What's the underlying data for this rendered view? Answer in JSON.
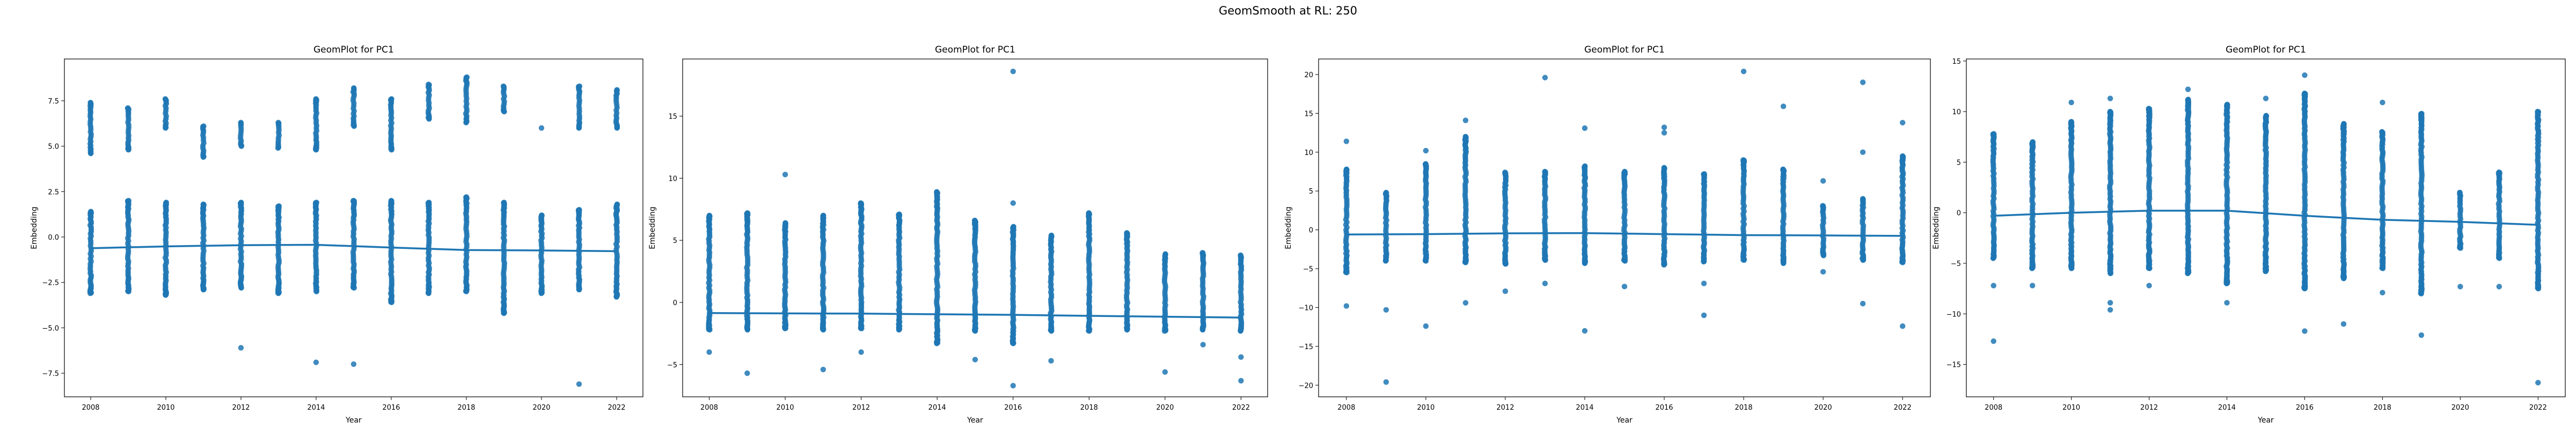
{
  "suptitle": "GeomSmooth at RL: 250",
  "colors": {
    "points": "#1f77b4",
    "smooth": "#1f77b4",
    "axes": "#000000"
  },
  "chart_data": [
    {
      "type": "scatter",
      "title": "GeomPlot for PC1",
      "xlabel": "Year",
      "ylabel": "Embedding",
      "xlim": [
        2007.3,
        2022.7
      ],
      "ylim": [
        -8.8,
        9.8
      ],
      "xticks": [
        2008,
        2010,
        2012,
        2014,
        2016,
        2018,
        2020,
        2022
      ],
      "yticks": [
        -7.5,
        -5.0,
        -2.5,
        0.0,
        2.5,
        5.0,
        7.5
      ],
      "ytick_labels": [
        "−7.5",
        "−5.0",
        "−2.5",
        "0.0",
        "2.5",
        "5.0",
        "7.5"
      ],
      "grid": false,
      "points_by_year": [
        {
          "x": 2008,
          "low": [
            -3.1,
            1.4
          ],
          "high": [
            4.6,
            7.4
          ],
          "outliers": []
        },
        {
          "x": 2009,
          "low": [
            -3.0,
            2.0
          ],
          "high": [
            4.8,
            7.1
          ],
          "outliers": []
        },
        {
          "x": 2010,
          "low": [
            -3.2,
            1.9
          ],
          "high": [
            6.0,
            7.6
          ],
          "outliers": []
        },
        {
          "x": 2011,
          "low": [
            -2.9,
            1.8
          ],
          "high": [
            4.4,
            6.1
          ],
          "outliers": []
        },
        {
          "x": 2012,
          "low": [
            -2.8,
            1.9
          ],
          "high": [
            5.0,
            6.3
          ],
          "outliers": [
            -6.1
          ]
        },
        {
          "x": 2013,
          "low": [
            -3.1,
            1.7
          ],
          "high": [
            4.9,
            6.3
          ],
          "outliers": []
        },
        {
          "x": 2014,
          "low": [
            -3.0,
            1.9
          ],
          "high": [
            4.8,
            7.6
          ],
          "outliers": [
            -6.9
          ]
        },
        {
          "x": 2015,
          "low": [
            -2.8,
            2.0
          ],
          "high": [
            6.1,
            8.2
          ],
          "outliers": [
            -7.0
          ]
        },
        {
          "x": 2016,
          "low": [
            -3.6,
            2.0
          ],
          "high": [
            4.8,
            7.6
          ],
          "outliers": []
        },
        {
          "x": 2017,
          "low": [
            -3.1,
            1.9
          ],
          "high": [
            6.5,
            8.4
          ],
          "outliers": []
        },
        {
          "x": 2018,
          "low": [
            -3.0,
            2.2
          ],
          "high": [
            6.3,
            8.8
          ],
          "outliers": []
        },
        {
          "x": 2019,
          "low": [
            -4.2,
            1.9
          ],
          "high": [
            6.9,
            8.3
          ],
          "outliers": []
        },
        {
          "x": 2020,
          "low": [
            -3.1,
            1.2
          ],
          "high": [],
          "outliers": [
            6.0
          ]
        },
        {
          "x": 2021,
          "low": [
            -2.9,
            1.5
          ],
          "high": [
            6.0,
            8.3
          ],
          "outliers": [
            -8.1
          ]
        },
        {
          "x": 2022,
          "low": [
            -3.3,
            1.8
          ],
          "high": [
            6.0,
            8.1
          ],
          "outliers": []
        }
      ],
      "smooth": [
        {
          "x": 2008,
          "y": -0.62
        },
        {
          "x": 2010,
          "y": -0.52
        },
        {
          "x": 2012,
          "y": -0.45
        },
        {
          "x": 2014,
          "y": -0.43
        },
        {
          "x": 2016,
          "y": -0.58
        },
        {
          "x": 2018,
          "y": -0.72
        },
        {
          "x": 2020,
          "y": -0.74
        },
        {
          "x": 2022,
          "y": -0.78
        }
      ]
    },
    {
      "type": "scatter",
      "title": "GeomPlot for PC1",
      "xlabel": "Year",
      "ylabel": "Embedding",
      "xlim": [
        2007.3,
        2022.7
      ],
      "ylim": [
        -7.6,
        19.6
      ],
      "xticks": [
        2008,
        2010,
        2012,
        2014,
        2016,
        2018,
        2020,
        2022
      ],
      "yticks": [
        -5,
        0,
        5,
        10,
        15
      ],
      "ytick_labels": [
        "−5",
        "0",
        "5",
        "10",
        "15"
      ],
      "grid": false,
      "points_by_year": [
        {
          "x": 2008,
          "low": [
            -2.2,
            7.0
          ],
          "high": [],
          "outliers": [
            -4.0
          ]
        },
        {
          "x": 2009,
          "low": [
            -2.2,
            7.2
          ],
          "high": [],
          "outliers": [
            -5.7
          ]
        },
        {
          "x": 2010,
          "low": [
            -2.1,
            6.4
          ],
          "high": [],
          "outliers": [
            10.3
          ]
        },
        {
          "x": 2011,
          "low": [
            -2.2,
            7.0
          ],
          "high": [],
          "outliers": [
            -5.4
          ]
        },
        {
          "x": 2012,
          "low": [
            -2.1,
            8.0
          ],
          "high": [],
          "outliers": [
            -4.0
          ]
        },
        {
          "x": 2013,
          "low": [
            -2.2,
            7.1
          ],
          "high": [],
          "outliers": []
        },
        {
          "x": 2014,
          "low": [
            -3.3,
            8.9
          ],
          "high": [],
          "outliers": []
        },
        {
          "x": 2015,
          "low": [
            -2.3,
            6.6
          ],
          "high": [],
          "outliers": [
            -4.6
          ]
        },
        {
          "x": 2016,
          "low": [
            -3.3,
            6.1
          ],
          "high": [],
          "outliers": [
            18.6,
            8.0,
            -6.7
          ]
        },
        {
          "x": 2017,
          "low": [
            -2.3,
            5.4
          ],
          "high": [],
          "outliers": [
            -4.7
          ]
        },
        {
          "x": 2018,
          "low": [
            -2.3,
            7.2
          ],
          "high": [],
          "outliers": []
        },
        {
          "x": 2019,
          "low": [
            -2.2,
            5.6
          ],
          "high": [],
          "outliers": []
        },
        {
          "x": 2020,
          "low": [
            -2.3,
            3.9
          ],
          "high": [],
          "outliers": [
            -5.6
          ]
        },
        {
          "x": 2021,
          "low": [
            -2.2,
            4.0
          ],
          "high": [],
          "outliers": [
            -3.4
          ]
        },
        {
          "x": 2022,
          "low": [
            -2.3,
            3.8
          ],
          "high": [],
          "outliers": [
            -4.4,
            -6.3
          ]
        }
      ],
      "smooth": [
        {
          "x": 2008,
          "y": -0.85
        },
        {
          "x": 2010,
          "y": -0.88
        },
        {
          "x": 2012,
          "y": -0.9
        },
        {
          "x": 2014,
          "y": -0.95
        },
        {
          "x": 2016,
          "y": -1.0
        },
        {
          "x": 2018,
          "y": -1.08
        },
        {
          "x": 2020,
          "y": -1.15
        },
        {
          "x": 2022,
          "y": -1.22
        }
      ]
    },
    {
      "type": "scatter",
      "title": "GeomPlot for PC1",
      "xlabel": "Year",
      "ylabel": "Embedding",
      "xlim": [
        2007.3,
        2022.7
      ],
      "ylim": [
        -21.5,
        22.0
      ],
      "xticks": [
        2008,
        2010,
        2012,
        2014,
        2016,
        2018,
        2020,
        2022
      ],
      "yticks": [
        -20,
        -15,
        -10,
        -5,
        0,
        5,
        10,
        15,
        20
      ],
      "ytick_labels": [
        "−20",
        "−15",
        "−10",
        "−5",
        "0",
        "5",
        "10",
        "15",
        "20"
      ],
      "grid": false,
      "points_by_year": [
        {
          "x": 2008,
          "low": [
            -5.5,
            7.8
          ],
          "high": [],
          "outliers": [
            11.4,
            -9.8
          ]
        },
        {
          "x": 2009,
          "low": [
            -4.0,
            4.8
          ],
          "high": [],
          "outliers": [
            -10.3,
            -19.6
          ]
        },
        {
          "x": 2010,
          "low": [
            -4.0,
            8.5
          ],
          "high": [],
          "outliers": [
            10.2,
            -12.4
          ]
        },
        {
          "x": 2011,
          "low": [
            -4.2,
            12.0
          ],
          "high": [],
          "outliers": [
            14.1,
            -9.4
          ]
        },
        {
          "x": 2012,
          "low": [
            -4.4,
            7.4
          ],
          "high": [],
          "outliers": [
            -7.9
          ]
        },
        {
          "x": 2013,
          "low": [
            -3.9,
            7.5
          ],
          "high": [],
          "outliers": [
            19.6,
            -6.9
          ]
        },
        {
          "x": 2014,
          "low": [
            -4.3,
            8.2
          ],
          "high": [],
          "outliers": [
            13.1,
            -13.0
          ]
        },
        {
          "x": 2015,
          "low": [
            -4.0,
            7.5
          ],
          "high": [],
          "outliers": [
            -7.3
          ]
        },
        {
          "x": 2016,
          "low": [
            -4.5,
            8.0
          ],
          "high": [],
          "outliers": [
            13.2,
            12.5
          ]
        },
        {
          "x": 2017,
          "low": [
            -4.1,
            7.2
          ],
          "high": [],
          "outliers": [
            -11.0,
            -6.9
          ]
        },
        {
          "x": 2018,
          "low": [
            -3.9,
            9.0
          ],
          "high": [],
          "outliers": [
            20.4
          ]
        },
        {
          "x": 2019,
          "low": [
            -4.3,
            7.8
          ],
          "high": [],
          "outliers": [
            15.9
          ]
        },
        {
          "x": 2020,
          "low": [
            -3.3,
            3.1
          ],
          "high": [],
          "outliers": [
            6.3,
            -5.4
          ]
        },
        {
          "x": 2021,
          "low": [
            -3.9,
            4.0
          ],
          "high": [],
          "outliers": [
            19.0,
            10.0,
            -9.5
          ]
        },
        {
          "x": 2022,
          "low": [
            -4.2,
            9.5
          ],
          "high": [],
          "outliers": [
            13.8,
            -12.4
          ]
        }
      ],
      "smooth": [
        {
          "x": 2008,
          "y": -0.6
        },
        {
          "x": 2010,
          "y": -0.55
        },
        {
          "x": 2012,
          "y": -0.45
        },
        {
          "x": 2014,
          "y": -0.42
        },
        {
          "x": 2016,
          "y": -0.55
        },
        {
          "x": 2018,
          "y": -0.68
        },
        {
          "x": 2020,
          "y": -0.72
        },
        {
          "x": 2022,
          "y": -0.78
        }
      ]
    },
    {
      "type": "scatter",
      "title": "GeomPlot for PC1",
      "xlabel": "Year",
      "ylabel": "Embedding",
      "xlim": [
        2007.3,
        2022.7
      ],
      "ylim": [
        -18.2,
        15.2
      ],
      "xticks": [
        2008,
        2010,
        2012,
        2014,
        2016,
        2018,
        2020,
        2022
      ],
      "yticks": [
        -15,
        -10,
        -5,
        0,
        5,
        10,
        15
      ],
      "ytick_labels": [
        "−15",
        "−10",
        "−5",
        "0",
        "5",
        "10",
        "15"
      ],
      "grid": false,
      "points_by_year": [
        {
          "x": 2008,
          "low": [
            -4.5,
            7.8
          ],
          "high": [],
          "outliers": [
            -7.2,
            -12.7
          ]
        },
        {
          "x": 2009,
          "low": [
            -5.5,
            7.0
          ],
          "high": [],
          "outliers": [
            -7.2
          ]
        },
        {
          "x": 2010,
          "low": [
            -5.5,
            9.0
          ],
          "high": [],
          "outliers": [
            10.9
          ]
        },
        {
          "x": 2011,
          "low": [
            -6.0,
            10.0
          ],
          "high": [],
          "outliers": [
            11.3,
            -8.9,
            -9.6
          ]
        },
        {
          "x": 2012,
          "low": [
            -5.5,
            10.3
          ],
          "high": [],
          "outliers": [
            -7.2
          ]
        },
        {
          "x": 2013,
          "low": [
            -6.0,
            11.2
          ],
          "high": [],
          "outliers": [
            12.2
          ]
        },
        {
          "x": 2014,
          "low": [
            -7.0,
            10.7
          ],
          "high": [],
          "outliers": [
            -8.9
          ]
        },
        {
          "x": 2015,
          "low": [
            -5.8,
            9.6
          ],
          "high": [],
          "outliers": [
            11.3
          ]
        },
        {
          "x": 2016,
          "low": [
            -7.5,
            11.8
          ],
          "high": [],
          "outliers": [
            13.6,
            -11.7
          ]
        },
        {
          "x": 2017,
          "low": [
            -6.5,
            8.8
          ],
          "high": [],
          "outliers": [
            -11.0
          ]
        },
        {
          "x": 2018,
          "low": [
            -5.5,
            8.0
          ],
          "high": [],
          "outliers": [
            10.9,
            -7.9
          ]
        },
        {
          "x": 2019,
          "low": [
            -8.0,
            9.8
          ],
          "high": [],
          "outliers": [
            -12.1
          ]
        },
        {
          "x": 2020,
          "low": [
            -3.5,
            2.0
          ],
          "high": [],
          "outliers": [
            -7.3
          ]
        },
        {
          "x": 2021,
          "low": [
            -4.5,
            4.0
          ],
          "high": [],
          "outliers": [
            -7.3
          ]
        },
        {
          "x": 2022,
          "low": [
            -7.5,
            10.0
          ],
          "high": [],
          "outliers": [
            -16.8
          ]
        }
      ],
      "smooth": [
        {
          "x": 2008,
          "y": -0.3
        },
        {
          "x": 2010,
          "y": 0.0
        },
        {
          "x": 2012,
          "y": 0.2
        },
        {
          "x": 2014,
          "y": 0.2
        },
        {
          "x": 2016,
          "y": -0.3
        },
        {
          "x": 2018,
          "y": -0.7
        },
        {
          "x": 2020,
          "y": -0.9
        },
        {
          "x": 2022,
          "y": -1.2
        }
      ]
    }
  ]
}
